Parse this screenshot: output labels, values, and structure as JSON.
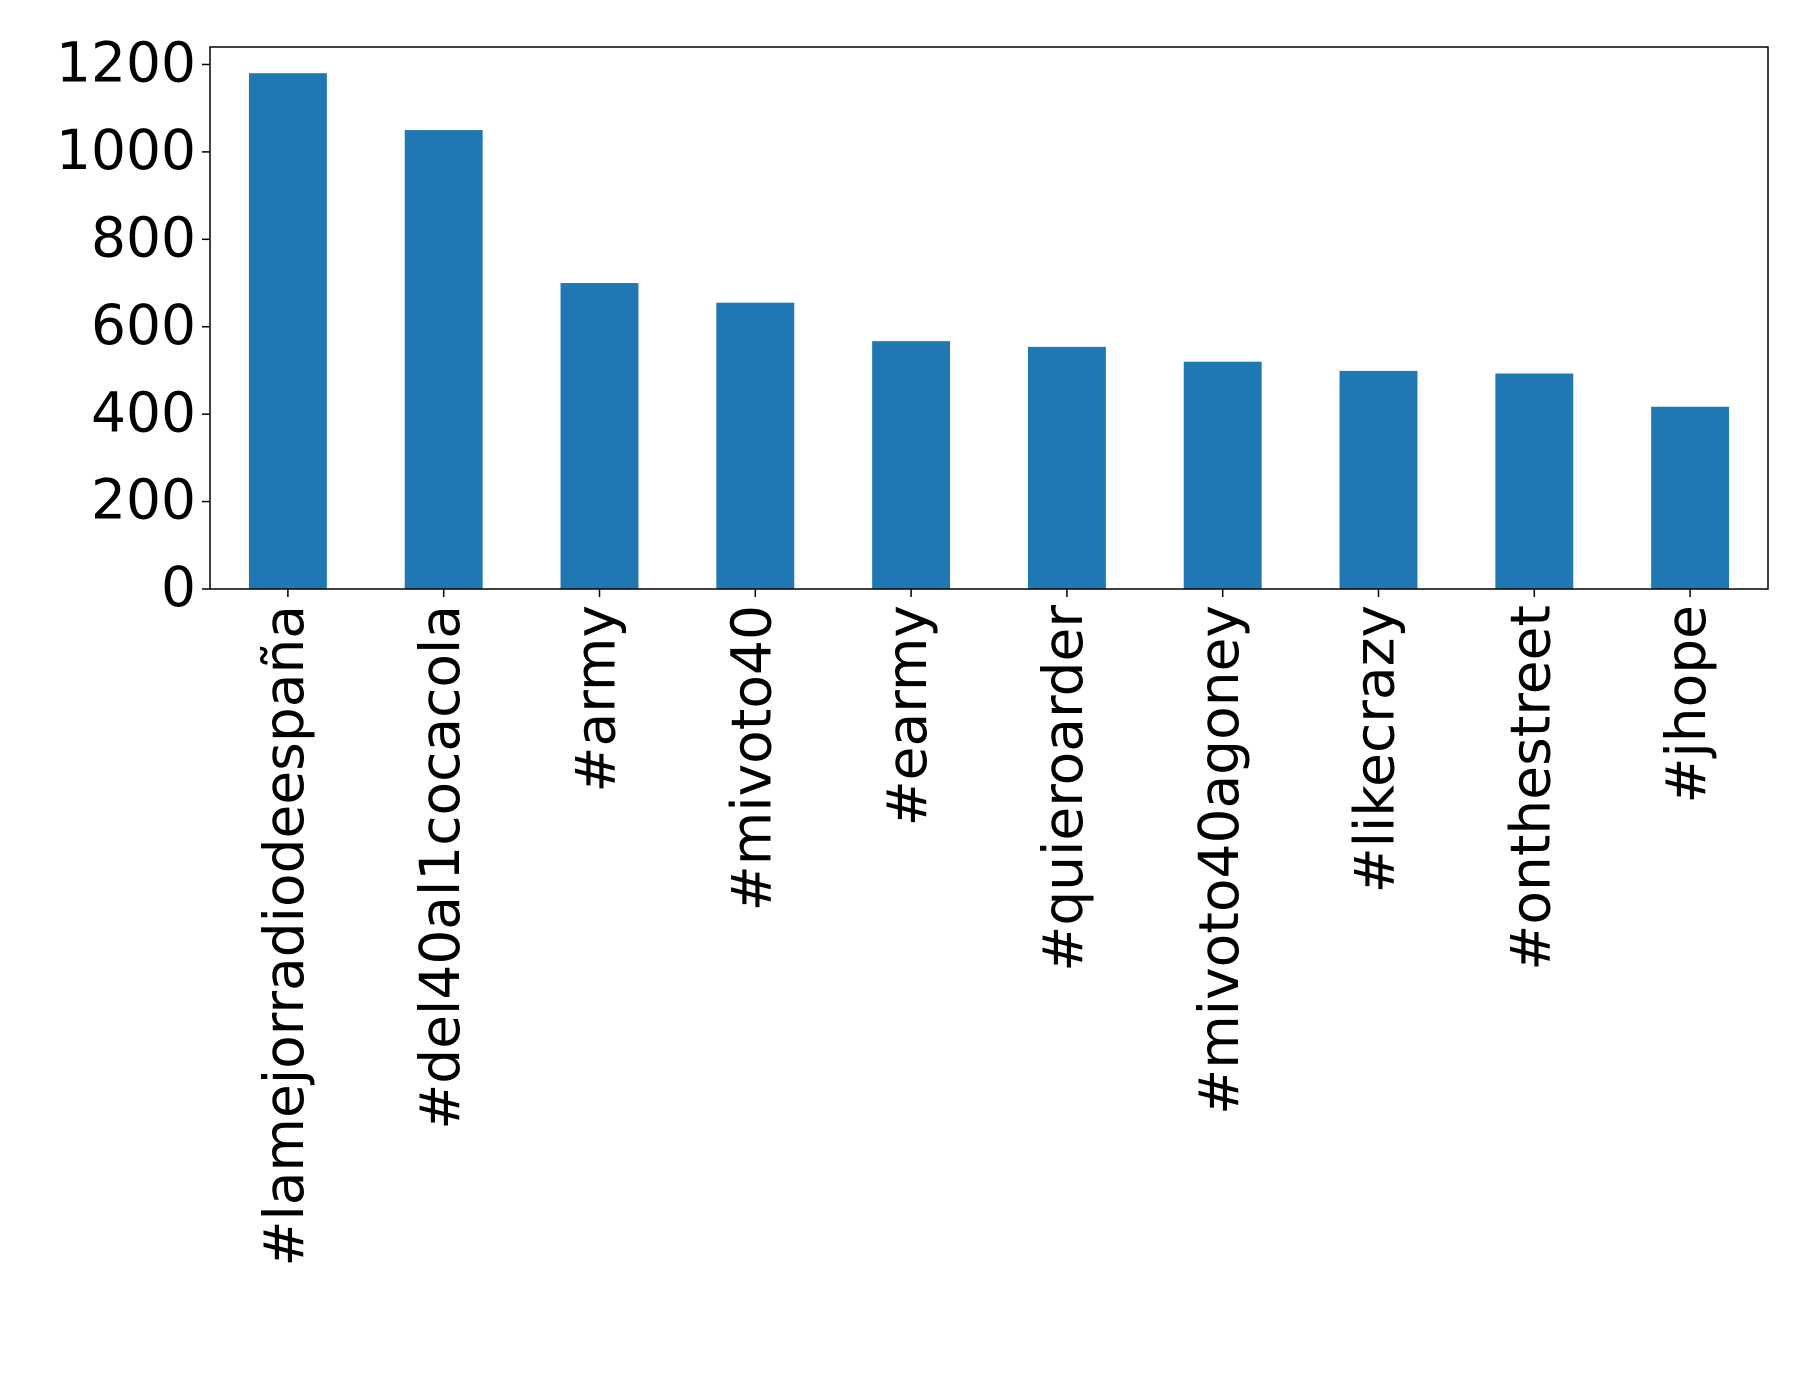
{
  "chart_data": {
    "type": "bar",
    "categories": [
      "#lamejorradiodeespaña",
      "#del40al1cocacola",
      "#army",
      "#mivoto40",
      "#earmy",
      "#quieroarder",
      "#mivoto40agoney",
      "#likecrazy",
      "#onthestreet",
      "#jhope"
    ],
    "values": [
      1180,
      1050,
      700,
      655,
      567,
      554,
      520,
      499,
      493,
      417
    ],
    "color": "#1f77b4",
    "ylim": [
      0,
      1240
    ],
    "yticks": [
      0,
      200,
      400,
      600,
      800,
      1000,
      1200
    ],
    "grid": false
  }
}
